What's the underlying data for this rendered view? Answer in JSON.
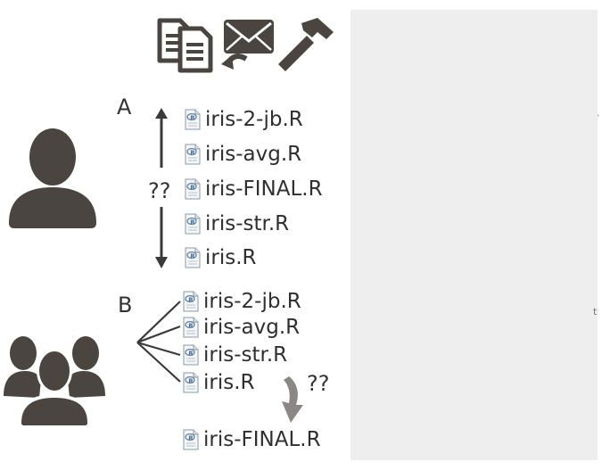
{
  "scenario_a": {
    "label": "A",
    "question": "??",
    "files": [
      "iris-2-jb.R",
      "iris-avg.R",
      "iris-FINAL.R",
      "iris-str.R",
      "iris.R"
    ]
  },
  "scenario_b": {
    "label": "B",
    "question": "??",
    "files": [
      "iris-2-jb.R",
      "iris-avg.R",
      "iris-str.R",
      "iris.R"
    ],
    "result_file": "iris-FINAL.R"
  },
  "panel": {
    "stray_marks": [
      "·",
      "t"
    ]
  },
  "icons": {
    "top": [
      "documents-icon",
      "email-reply-icon",
      "hammer-icon"
    ],
    "actors": [
      "single-user-icon",
      "group-users-icon"
    ],
    "file": "r-script-file-icon"
  },
  "colors": {
    "icon": "#4a4540",
    "text": "#333333",
    "panel": "#eeeeee",
    "curved_arrow": "#8a8784"
  }
}
